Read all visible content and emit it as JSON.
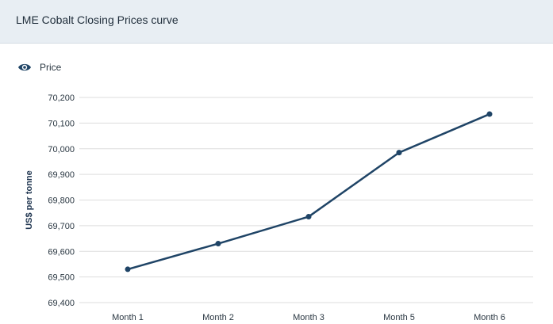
{
  "header": {
    "title": "LME Cobalt Closing Prices curve"
  },
  "legend": {
    "icon": "eye-icon",
    "label": "Price"
  },
  "colors": {
    "line": "#1f4466",
    "header_bg": "#e8eef3",
    "grid": "#dddddd"
  },
  "chart_data": {
    "type": "line",
    "title": "LME Cobalt Closing Prices curve",
    "categories": [
      "Month 1",
      "Month 2",
      "Month 3",
      "Month 5",
      "Month 6"
    ],
    "series": [
      {
        "name": "Price",
        "values": [
          69530,
          69630,
          69735,
          69985,
          70135
        ]
      }
    ],
    "ylabel": "US$ per tonne",
    "xlabel": "",
    "ylim": [
      69400,
      70200
    ],
    "yticks": [
      69400,
      69500,
      69600,
      69700,
      69800,
      69900,
      70000,
      70100,
      70200
    ],
    "ytick_labels": [
      "69,400",
      "69,500",
      "69,600",
      "69,700",
      "69,800",
      "69,900",
      "70,000",
      "70,100",
      "70,200"
    ],
    "grid": true,
    "legend_position": "top-left"
  }
}
